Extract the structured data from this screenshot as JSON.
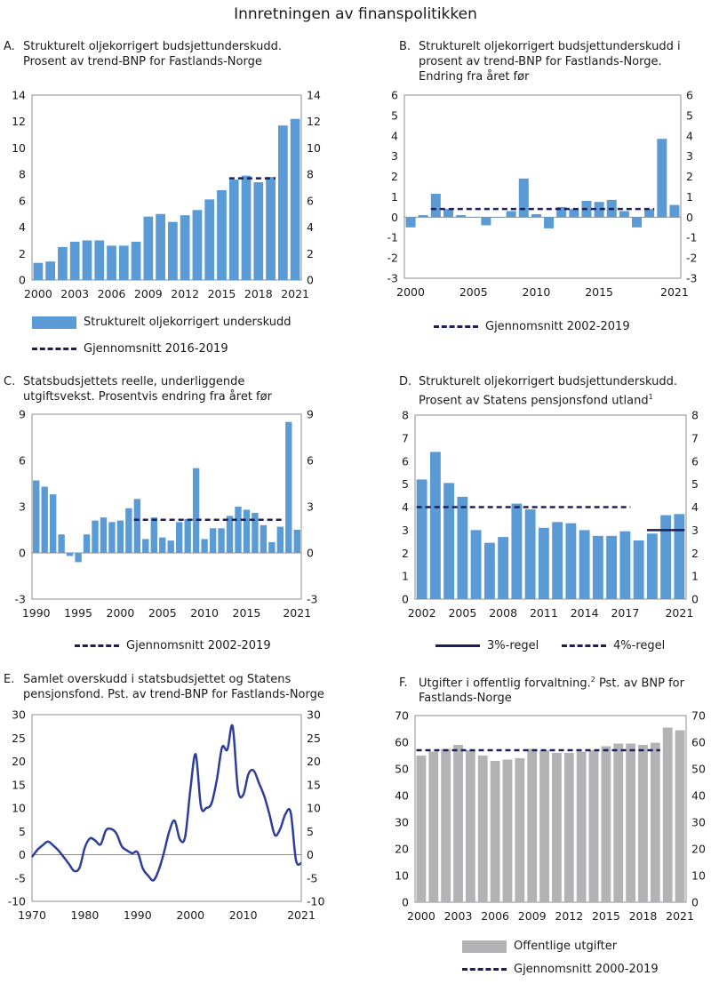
{
  "page_title": "Innretningen av finanspolitikken",
  "colors": {
    "bar_blue": "#5b9bd5",
    "bar_grey": "#b3b3b6",
    "line_navy": "#1e1e5a",
    "line_blue": "#2e3f9a"
  },
  "chart_data": [
    {
      "id": "A",
      "type": "bar",
      "letter": "A.",
      "title_lines": [
        "Strukturelt oljekorrigert budsjettunderskudd.",
        "Prosent av trend-BNP for Fastlands-Norge"
      ],
      "x": [
        2000,
        2001,
        2002,
        2003,
        2004,
        2005,
        2006,
        2007,
        2008,
        2009,
        2010,
        2011,
        2012,
        2013,
        2014,
        2015,
        2016,
        2017,
        2018,
        2019,
        2020,
        2021
      ],
      "values": [
        1.3,
        1.4,
        2.5,
        2.9,
        3.0,
        3.0,
        2.6,
        2.6,
        2.9,
        4.8,
        5.0,
        4.4,
        4.9,
        5.3,
        6.1,
        6.8,
        7.6,
        7.9,
        7.4,
        7.8,
        11.7,
        12.2
      ],
      "x_ticks": [
        "2000",
        "2003",
        "2006",
        "2009",
        "2012",
        "2015",
        "2018",
        "2021"
      ],
      "ylim": [
        0,
        14
      ],
      "y_ticks": [
        "0",
        "2",
        "4",
        "6",
        "8",
        "10",
        "12",
        "14"
      ],
      "average": {
        "from": 2016,
        "to": 2019,
        "value": 7.7
      },
      "legend": [
        {
          "kind": "bar",
          "label": "Strukturelt oljekorrigert underskudd"
        },
        {
          "kind": "dash",
          "label": "Gjennomsnitt 2016-2019"
        }
      ]
    },
    {
      "id": "B",
      "type": "bar",
      "letter": "B.",
      "title_lines": [
        "Strukturelt oljekorrigert budsjettunderskudd i",
        "prosent av trend-BNP for Fastlands-Norge.",
        "Endring fra året før"
      ],
      "x": [
        2000,
        2001,
        2002,
        2003,
        2004,
        2005,
        2006,
        2007,
        2008,
        2009,
        2010,
        2011,
        2012,
        2013,
        2014,
        2015,
        2016,
        2017,
        2018,
        2019,
        2020,
        2021
      ],
      "values": [
        -0.5,
        0.1,
        1.15,
        0.4,
        0.1,
        0.0,
        -0.4,
        0.0,
        0.3,
        1.9,
        0.15,
        -0.55,
        0.5,
        0.4,
        0.8,
        0.75,
        0.85,
        0.3,
        -0.5,
        0.4,
        3.85,
        0.6
      ],
      "x_ticks": [
        "2000",
        "2005",
        "2010",
        "2015",
        "2021"
      ],
      "ylim": [
        -3,
        6
      ],
      "y_ticks": [
        "-3",
        "-2",
        "-1",
        "0",
        "1",
        "2",
        "3",
        "4",
        "5",
        "6"
      ],
      "average": {
        "from": 2002,
        "to": 2019,
        "value": 0.4
      },
      "legend": [
        {
          "kind": "dash",
          "label": "Gjennomsnitt 2002-2019"
        }
      ]
    },
    {
      "id": "C",
      "type": "bar",
      "letter": "C.",
      "title_lines": [
        "Statsbudsjettets reelle, underliggende",
        "utgiftsvekst. Prosentvis endring fra året før"
      ],
      "x": [
        1990,
        1991,
        1992,
        1993,
        1994,
        1995,
        1996,
        1997,
        1998,
        1999,
        2000,
        2001,
        2002,
        2003,
        2004,
        2005,
        2006,
        2007,
        2008,
        2009,
        2010,
        2011,
        2012,
        2013,
        2014,
        2015,
        2016,
        2017,
        2018,
        2019,
        2020,
        2021
      ],
      "values": [
        4.7,
        4.3,
        3.8,
        1.2,
        -0.2,
        -0.6,
        1.2,
        2.1,
        2.3,
        2.0,
        2.1,
        2.9,
        3.5,
        0.9,
        2.3,
        1.0,
        0.8,
        2.0,
        2.2,
        5.5,
        0.9,
        1.6,
        1.6,
        2.4,
        3.0,
        2.8,
        2.6,
        1.8,
        0.7,
        1.7,
        8.5,
        1.5
      ],
      "x_ticks": [
        "1990",
        "1995",
        "2000",
        "2005",
        "2010",
        "2015",
        "2021"
      ],
      "ylim": [
        -3,
        9
      ],
      "y_ticks": [
        "-3",
        "0",
        "3",
        "6",
        "9"
      ],
      "average": {
        "from": 2002,
        "to": 2019,
        "value": 2.15
      },
      "legend": [
        {
          "kind": "dash",
          "label": "Gjennomsnitt 2002-2019"
        }
      ]
    },
    {
      "id": "D",
      "type": "bar",
      "letter": "D.",
      "title_lines": [
        "Strukturelt oljekorrigert budsjettunderskudd.",
        "Prosent av Statens pensjonsfond utland"
      ],
      "title_sup": "1",
      "x": [
        2002,
        2003,
        2004,
        2005,
        2006,
        2007,
        2008,
        2009,
        2010,
        2011,
        2012,
        2013,
        2014,
        2015,
        2016,
        2017,
        2018,
        2019,
        2020,
        2021
      ],
      "values": [
        5.2,
        6.4,
        5.05,
        4.45,
        3.0,
        2.45,
        2.7,
        4.15,
        3.9,
        3.1,
        3.35,
        3.3,
        3.0,
        2.75,
        2.75,
        2.95,
        2.55,
        2.85,
        3.65,
        3.7
      ],
      "x_ticks": [
        "2002",
        "2005",
        "2008",
        "2011",
        "2014",
        "2017",
        "2021"
      ],
      "ylim": [
        0,
        8
      ],
      "y_ticks": [
        "0",
        "1",
        "2",
        "3",
        "4",
        "5",
        "6",
        "7",
        "8"
      ],
      "rules": [
        {
          "label": "4%-regel",
          "from": 2002,
          "to": 2017,
          "value": 4.0,
          "style": "dash"
        },
        {
          "label": "3%-regel",
          "from": 2019,
          "to": 2021,
          "value": 3.0,
          "style": "solid"
        }
      ],
      "legend": [
        {
          "kind": "solid",
          "label": "3%-regel"
        },
        {
          "kind": "dash",
          "label": "4%-regel"
        }
      ]
    },
    {
      "id": "E",
      "type": "line",
      "letter": "E.",
      "title_lines": [
        "Samlet overskudd i statsbudsjettet og Statens",
        "pensjonsfond. Pst. av trend-BNP for Fastlands-Norge"
      ],
      "x": [
        1970,
        1971,
        1972,
        1973,
        1974,
        1975,
        1976,
        1977,
        1978,
        1979,
        1980,
        1981,
        1982,
        1983,
        1984,
        1985,
        1986,
        1987,
        1988,
        1989,
        1990,
        1991,
        1992,
        1993,
        1994,
        1995,
        1996,
        1997,
        1998,
        1999,
        2000,
        2001,
        2002,
        2003,
        2004,
        2005,
        2006,
        2007,
        2008,
        2009,
        2010,
        2011,
        2012,
        2013,
        2014,
        2015,
        2016,
        2017,
        2018,
        2019,
        2020,
        2021
      ],
      "values": [
        -0.5,
        1.0,
        2.0,
        2.8,
        2.0,
        0.9,
        -0.5,
        -2.0,
        -3.5,
        -2.8,
        1.5,
        3.5,
        3.0,
        2.2,
        5.2,
        5.5,
        4.5,
        1.8,
        0.9,
        0.3,
        0.5,
        -3.0,
        -4.5,
        -5.5,
        -3.3,
        0.5,
        5.0,
        7.3,
        3.3,
        3.8,
        14.0,
        21.5,
        10.3,
        10.0,
        11.0,
        16.0,
        23.0,
        22.5,
        27.5,
        14.0,
        12.8,
        17.3,
        18.0,
        15.3,
        12.5,
        8.5,
        4.2,
        5.5,
        8.7,
        9.0,
        -1.2,
        -1.8
      ],
      "x_ticks": [
        "1970",
        "1980",
        "1990",
        "2000",
        "2010",
        "2021"
      ],
      "ylim": [
        -10,
        30
      ],
      "y_ticks": [
        "-10",
        "-5",
        "0",
        "5",
        "10",
        "15",
        "20",
        "25",
        "30"
      ]
    },
    {
      "id": "F",
      "type": "bar",
      "letter": "F.",
      "title_lines": [
        "Utgifter i offentlig forvaltning.",
        "Fastlands-Norge"
      ],
      "title_sup": "2",
      "title_tail": " Pst. av BNP for",
      "x": [
        2000,
        2001,
        2002,
        2003,
        2004,
        2005,
        2006,
        2007,
        2008,
        2009,
        2010,
        2011,
        2012,
        2013,
        2014,
        2015,
        2016,
        2017,
        2018,
        2019,
        2020,
        2021
      ],
      "values": [
        55.0,
        56.5,
        57.5,
        59.0,
        57.0,
        55.0,
        53.0,
        53.5,
        54.0,
        57.5,
        57.0,
        56.0,
        56.0,
        56.5,
        57.0,
        58.5,
        59.5,
        59.5,
        59.0,
        59.8,
        65.5,
        64.5
      ],
      "x_ticks": [
        "2000",
        "2003",
        "2006",
        "2009",
        "2012",
        "2015",
        "2018",
        "2021"
      ],
      "ylim": [
        0,
        70
      ],
      "y_ticks": [
        "0",
        "10",
        "20",
        "30",
        "40",
        "50",
        "60",
        "70"
      ],
      "average": {
        "from": 2000,
        "to": 2019,
        "value": 57.0
      },
      "legend": [
        {
          "kind": "greybar",
          "label": "Offentlige utgifter"
        },
        {
          "kind": "dash",
          "label": "Gjennomsnitt 2000-2019"
        }
      ]
    }
  ]
}
